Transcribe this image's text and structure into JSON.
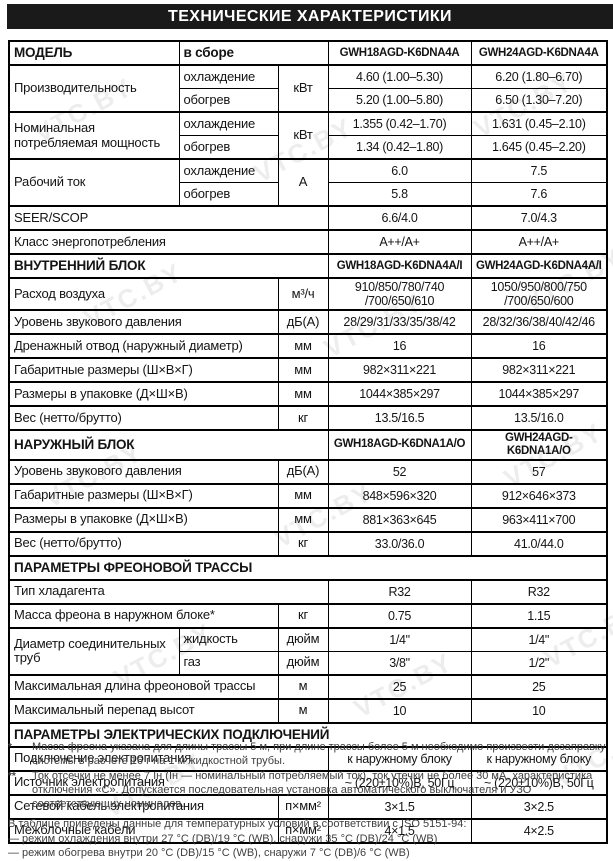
{
  "title": "ТЕХНИЧЕСКИЕ ХАРАКТЕРИСТИКИ",
  "watermark": "VTC.BY",
  "colors": {
    "title_bar_bg": "#1a1a1a",
    "table_border": "#000000"
  },
  "table": {
    "rows": [
      {
        "th": true,
        "cells": [
          {
            "t": "МОДЕЛЬ",
            "cls": "head"
          },
          {
            "t": "в сборе",
            "cs": 2,
            "cls": "head"
          },
          {
            "t": "GWH18AGD-K6DNA4A",
            "cls": "model"
          },
          {
            "t": "GWH24AGD-K6DNA4A",
            "cls": "model"
          }
        ]
      },
      {
        "th": true,
        "cells": [
          {
            "t": "Производительность",
            "rs": 2,
            "cls": "name"
          },
          {
            "t": "охлаждение",
            "cls": "sub"
          },
          {
            "t": "кВт",
            "rs": 2,
            "cls": "unit"
          },
          {
            "t": "4.60 (1.00–5.30)",
            "cls": "val"
          },
          {
            "t": "6.20 (1.80–6.70)",
            "cls": "val"
          }
        ]
      },
      {
        "cells": [
          {
            "t": "обогрев",
            "cls": "sub"
          },
          {
            "t": "5.20 (1.00–5.80)",
            "cls": "val"
          },
          {
            "t": "6.50 (1.30–7.20)",
            "cls": "val"
          }
        ]
      },
      {
        "th": true,
        "cells": [
          {
            "t": "Номинальная потребляемая мощность",
            "rs": 2,
            "cls": "name"
          },
          {
            "t": "охлаждение",
            "cls": "sub"
          },
          {
            "t": "кВт",
            "rs": 2,
            "cls": "unit"
          },
          {
            "t": "1.355 (0.42–1.70)",
            "cls": "val"
          },
          {
            "t": "1.631 (0.45–2.10)",
            "cls": "val"
          }
        ]
      },
      {
        "cells": [
          {
            "t": "обогрев",
            "cls": "sub"
          },
          {
            "t": "1.34 (0.42–1.80)",
            "cls": "val"
          },
          {
            "t": "1.645 (0.45–2.20)",
            "cls": "val"
          }
        ]
      },
      {
        "th": true,
        "cells": [
          {
            "t": "Рабочий ток",
            "rs": 2,
            "cls": "name"
          },
          {
            "t": "охлаждение",
            "cls": "sub"
          },
          {
            "t": "А",
            "rs": 2,
            "cls": "unit"
          },
          {
            "t": "6.0",
            "cls": "val"
          },
          {
            "t": "7.5",
            "cls": "val"
          }
        ]
      },
      {
        "cells": [
          {
            "t": "обогрев",
            "cls": "sub"
          },
          {
            "t": "5.8",
            "cls": "val"
          },
          {
            "t": "7.6",
            "cls": "val"
          }
        ]
      },
      {
        "th": true,
        "cells": [
          {
            "t": "SEER/SCOP",
            "cs": 3,
            "cls": "name"
          },
          {
            "t": "6.6/4.0",
            "cls": "val"
          },
          {
            "t": "7.0/4.3",
            "cls": "val"
          }
        ]
      },
      {
        "th": true,
        "cells": [
          {
            "t": "Класс энергопотребления",
            "cs": 3,
            "cls": "name"
          },
          {
            "t": "A++/A+",
            "cls": "val"
          },
          {
            "t": "A++/A+",
            "cls": "val"
          }
        ]
      },
      {
        "th": true,
        "cells": [
          {
            "t": "ВНУТРЕННИЙ БЛОК",
            "cs": 3,
            "cls": "sec"
          },
          {
            "t": "GWH18AGD-K6DNA4A/I",
            "cls": "model"
          },
          {
            "t": "GWH24AGD-K6DNA4A/I",
            "cls": "model"
          }
        ]
      },
      {
        "th": true,
        "cells": [
          {
            "t": "Расход воздуха",
            "cs": 2,
            "cls": "name"
          },
          {
            "t": "м³/ч",
            "cls": "unit"
          },
          {
            "t": "910/850/780/740\n/700/650/610",
            "cls": "val"
          },
          {
            "t": "1050/950/800/750\n/700/650/600",
            "cls": "val"
          }
        ]
      },
      {
        "th": true,
        "cells": [
          {
            "t": "Уровень звукового давления",
            "cs": 2,
            "cls": "name"
          },
          {
            "t": "дБ(А)",
            "cls": "unit"
          },
          {
            "t": "28/29/31/33/35/38/42",
            "cls": "val"
          },
          {
            "t": "28/32/36/38/40/42/46",
            "cls": "val"
          }
        ]
      },
      {
        "th": true,
        "cells": [
          {
            "t": "Дренажный отвод (наружный диаметр)",
            "cs": 2,
            "cls": "name"
          },
          {
            "t": "мм",
            "cls": "unit"
          },
          {
            "t": "16",
            "cls": "val"
          },
          {
            "t": "16",
            "cls": "val"
          }
        ]
      },
      {
        "th": true,
        "cells": [
          {
            "t": "Габаритные размеры (Ш×В×Г)",
            "cs": 2,
            "cls": "name"
          },
          {
            "t": "мм",
            "cls": "unit"
          },
          {
            "t": "982×311×221",
            "cls": "val"
          },
          {
            "t": "982×311×221",
            "cls": "val"
          }
        ]
      },
      {
        "th": true,
        "cells": [
          {
            "t": "Размеры в упаковке (Д×Ш×В)",
            "cs": 2,
            "cls": "name"
          },
          {
            "t": "мм",
            "cls": "unit"
          },
          {
            "t": "1044×385×297",
            "cls": "val"
          },
          {
            "t": "1044×385×297",
            "cls": "val"
          }
        ]
      },
      {
        "th": true,
        "cells": [
          {
            "t": "Вес (нетто/брутто)",
            "cs": 2,
            "cls": "name"
          },
          {
            "t": "кг",
            "cls": "unit"
          },
          {
            "t": "13.5/16.5",
            "cls": "val"
          },
          {
            "t": "13.5/16.0",
            "cls": "val"
          }
        ]
      },
      {
        "th": true,
        "cells": [
          {
            "t": "НАРУЖНЫЙ БЛОК",
            "cs": 3,
            "cls": "sec"
          },
          {
            "t": "GWH18AGD-K6DNA1A/O",
            "cls": "model"
          },
          {
            "t": "GWH24AGD-K6DNA1A/O",
            "cls": "model"
          }
        ]
      },
      {
        "th": true,
        "cells": [
          {
            "t": "Уровень звукового давления",
            "cs": 2,
            "cls": "name"
          },
          {
            "t": "дБ(А)",
            "cls": "unit"
          },
          {
            "t": "52",
            "cls": "val"
          },
          {
            "t": "57",
            "cls": "val"
          }
        ]
      },
      {
        "th": true,
        "cells": [
          {
            "t": "Габаритные размеры (Ш×В×Г)",
            "cs": 2,
            "cls": "name"
          },
          {
            "t": "мм",
            "cls": "unit"
          },
          {
            "t": "848×596×320",
            "cls": "val"
          },
          {
            "t": "912×646×373",
            "cls": "val"
          }
        ]
      },
      {
        "th": true,
        "cells": [
          {
            "t": "Размеры в упаковке (Д×Ш×В)",
            "cs": 2,
            "cls": "name"
          },
          {
            "t": "мм",
            "cls": "unit"
          },
          {
            "t": "881×363×645",
            "cls": "val"
          },
          {
            "t": "963×411×700",
            "cls": "val"
          }
        ]
      },
      {
        "th": true,
        "cells": [
          {
            "t": "Вес (нетто/брутто)",
            "cs": 2,
            "cls": "name"
          },
          {
            "t": "кг",
            "cls": "unit"
          },
          {
            "t": "33.0/36.0",
            "cls": "val"
          },
          {
            "t": "41.0/44.0",
            "cls": "val"
          }
        ]
      },
      {
        "th": true,
        "cells": [
          {
            "t": "ПАРАМЕТРЫ ФРЕОНОВОЙ ТРАССЫ",
            "cs": 5,
            "cls": "sec"
          }
        ]
      },
      {
        "th": true,
        "cells": [
          {
            "t": "Тип хладагента",
            "cs": 3,
            "cls": "name"
          },
          {
            "t": "R32",
            "cls": "val"
          },
          {
            "t": "R32",
            "cls": "val"
          }
        ]
      },
      {
        "th": true,
        "cells": [
          {
            "t": "Масса фреона в наружном блоке*",
            "cs": 2,
            "cls": "name"
          },
          {
            "t": "кг",
            "cls": "unit"
          },
          {
            "t": "0.75",
            "cls": "val"
          },
          {
            "t": "1.15",
            "cls": "val"
          }
        ]
      },
      {
        "th": true,
        "cells": [
          {
            "t": "Диаметр соединительных труб",
            "rs": 2,
            "cls": "name"
          },
          {
            "t": "жидкость",
            "cls": "sub"
          },
          {
            "t": "дюйм",
            "cls": "unit"
          },
          {
            "t": "1/4\"",
            "cls": "val"
          },
          {
            "t": "1/4\"",
            "cls": "val"
          }
        ]
      },
      {
        "cells": [
          {
            "t": "газ",
            "cls": "sub"
          },
          {
            "t": "дюйм",
            "cls": "unit"
          },
          {
            "t": "3/8\"",
            "cls": "val"
          },
          {
            "t": "1/2\"",
            "cls": "val"
          }
        ]
      },
      {
        "th": true,
        "cells": [
          {
            "t": "Максимальная длина фреоновой трассы",
            "cs": 2,
            "cls": "name"
          },
          {
            "t": "м",
            "cls": "unit"
          },
          {
            "t": "25",
            "cls": "val"
          },
          {
            "t": "25",
            "cls": "val"
          }
        ]
      },
      {
        "th": true,
        "cells": [
          {
            "t": "Максимальный перепад высот",
            "cs": 2,
            "cls": "name"
          },
          {
            "t": "м",
            "cls": "unit"
          },
          {
            "t": "10",
            "cls": "val"
          },
          {
            "t": "10",
            "cls": "val"
          }
        ]
      },
      {
        "th": true,
        "cells": [
          {
            "t": "ПАРАМЕТРЫ ЭЛЕКТРИЧЕСКИХ ПОДКЛЮЧЕНИЙ",
            "cs": 5,
            "cls": "sec"
          }
        ]
      },
      {
        "th": true,
        "cells": [
          {
            "t": "Подключение электропитания",
            "cs": 3,
            "cls": "name"
          },
          {
            "t": "к наружному блоку",
            "cls": "val"
          },
          {
            "t": "к наружному блоку",
            "cls": "val"
          }
        ]
      },
      {
        "th": true,
        "cells": [
          {
            "t": "Источник электропитания",
            "cs": 3,
            "cls": "name"
          },
          {
            "t": "~ (220±10%)В, 50Гц",
            "cls": "val"
          },
          {
            "t": "~ (220±10%)В, 50Гц",
            "cls": "val"
          }
        ]
      },
      {
        "th": true,
        "cells": [
          {
            "t": "Сетевой кабель электропитания",
            "cs": 2,
            "cls": "name"
          },
          {
            "t": "п×мм²",
            "cls": "unit"
          },
          {
            "t": "3×1.5",
            "cls": "val"
          },
          {
            "t": "3×2.5",
            "cls": "val"
          }
        ]
      },
      {
        "th": true,
        "cells": [
          {
            "t": "Межблочные кабели",
            "cs": 2,
            "cls": "name"
          },
          {
            "t": "п×мм²",
            "cls": "unit"
          },
          {
            "t": "4×1.5",
            "cls": "val"
          },
          {
            "t": "4×2.5",
            "cls": "val"
          }
        ]
      }
    ]
  },
  "footnotes": [
    {
      "marker": "*",
      "text": "Масса фреона указана для длины трассы 5 м, при длине трассы более 5 м необходимо произвести дозаправку системы в расчете 16 г на 1 м жидкостной трубы."
    },
    {
      "marker": "**",
      "text": "Ток отсечки не менее 7 Iн (Iн — номинальный потребляемый ток), ток утечки не более 30 мА, характеристика отключения «С». Допускается последовательная установка автоматического выключателя и УЗО соответствующих номиналов."
    }
  ],
  "conditions": {
    "intro": "В таблице приведены данные для температурных условий в соответствии с ISO 5151-94:",
    "items": [
      "— режим охлаждения внутри 27 °С (DB)/19 °С (WB), снаружи 35 °С (DB)/24 °С (WB)",
      "— режим обогрева внутри 20 °С (DB)/15 °С (WB), снаружи 7 °С (DB)/6 °С (WB)"
    ]
  }
}
